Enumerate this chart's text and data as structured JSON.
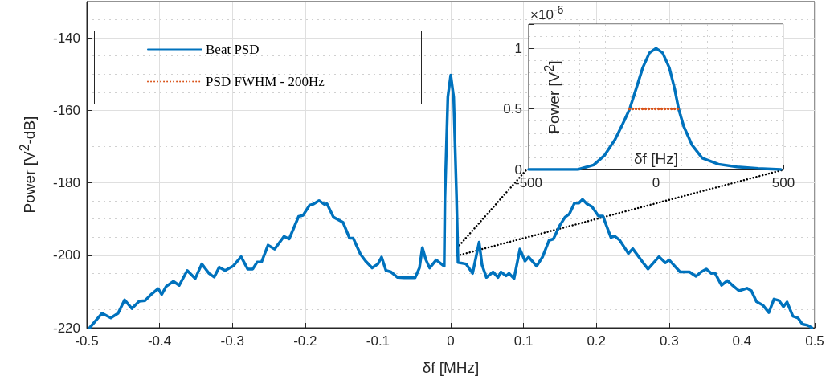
{
  "chart_data": [
    {
      "type": "line",
      "xlabel": "δf [MHz]",
      "ylabel": "Power [V$^{2}$-dB]",
      "xlim": [
        -0.5,
        0.5
      ],
      "xticks": [
        -0.5,
        -0.4,
        -0.3,
        -0.2,
        -0.1,
        0,
        0.1,
        0.2,
        0.3,
        0.4,
        0.5
      ],
      "ylim": [
        -220,
        -130
      ],
      "yticks": [
        -220,
        -200,
        -180,
        -160,
        -140
      ],
      "grid": true,
      "legend": "top left",
      "marker": "none",
      "series": [
        {
          "name": "Beat PSD",
          "color": "#0072bd",
          "line_style": "solid",
          "x": [
            -0.496,
            -0.479,
            -0.467,
            -0.457,
            -0.448,
            -0.438,
            -0.428,
            -0.42,
            -0.411,
            -0.402,
            -0.397,
            -0.391,
            -0.381,
            -0.373,
            -0.362,
            -0.351,
            -0.342,
            -0.332,
            -0.325,
            -0.318,
            -0.31,
            -0.299,
            -0.288,
            -0.279,
            -0.272,
            -0.266,
            -0.26,
            -0.251,
            -0.242,
            -0.229,
            -0.222,
            -0.209,
            -0.203,
            -0.194,
            -0.189,
            -0.181,
            -0.174,
            -0.17,
            -0.161,
            -0.148,
            -0.139,
            -0.134,
            -0.124,
            -0.117,
            -0.108,
            -0.1,
            -0.095,
            -0.089,
            -0.082,
            -0.073,
            -0.064,
            -0.049,
            -0.043,
            -0.039,
            -0.034,
            -0.029,
            -0.02,
            -0.009,
            -0.008,
            -0.004,
            0,
            0.004,
            0.008,
            0.01,
            0.021,
            0.03,
            0.039,
            0.043,
            0.049,
            0.058,
            0.065,
            0.069,
            0.076,
            0.08,
            0.087,
            0.095,
            0.102,
            0.107,
            0.118,
            0.126,
            0.135,
            0.141,
            0.15,
            0.157,
            0.163,
            0.17,
            0.176,
            0.181,
            0.187,
            0.194,
            0.203,
            0.209,
            0.22,
            0.225,
            0.232,
            0.244,
            0.25,
            0.264,
            0.271,
            0.286,
            0.295,
            0.3,
            0.315,
            0.328,
            0.337,
            0.344,
            0.351,
            0.358,
            0.363,
            0.372,
            0.38,
            0.386,
            0.396,
            0.407,
            0.413,
            0.42,
            0.429,
            0.437,
            0.444,
            0.451,
            0.457,
            0.462,
            0.47,
            0.477,
            0.483,
            0.49,
            0.496
          ],
          "values": [
            -220,
            -216,
            -217.3,
            -216,
            -212.3,
            -214.7,
            -212.7,
            -212.5,
            -210.7,
            -209.2,
            -210.8,
            -208.6,
            -207.2,
            -208.3,
            -204.2,
            -206.4,
            -202.4,
            -205,
            -206,
            -203.3,
            -204.2,
            -203,
            -200.4,
            -203.8,
            -203.8,
            -201.9,
            -201.9,
            -197.2,
            -198.3,
            -194.8,
            -195.5,
            -189.3,
            -189,
            -186.2,
            -185.9,
            -184.9,
            -185.9,
            -185.8,
            -189.5,
            -190.9,
            -195.3,
            -195.3,
            -199.7,
            -201.6,
            -203.5,
            -202.4,
            -200.5,
            -204.2,
            -204.6,
            -206.1,
            -206.2,
            -206.2,
            -203.5,
            -197.9,
            -201.3,
            -203.5,
            -201.3,
            -203,
            -184.2,
            -156.3,
            -150.3,
            -156.3,
            -184.2,
            -202,
            -202.4,
            -205,
            -196.4,
            -202.7,
            -206.1,
            -204.6,
            -206.1,
            -204.6,
            -205.7,
            -205,
            -206.4,
            -198.3,
            -201.6,
            -200.5,
            -203,
            -200.5,
            -195.9,
            -195.5,
            -191.7,
            -189.5,
            -188.6,
            -185.6,
            -185.6,
            -184.6,
            -185.8,
            -186.6,
            -189.2,
            -189.2,
            -195.1,
            -194.7,
            -195.8,
            -199.5,
            -198.2,
            -202,
            -203.8,
            -200.4,
            -202.1,
            -201.3,
            -204.6,
            -204.6,
            -205.8,
            -204.6,
            -203.8,
            -205,
            -204.9,
            -208.3,
            -207,
            -208.1,
            -209.8,
            -209.1,
            -209.8,
            -212.8,
            -213.8,
            -215.8,
            -212.1,
            -212.5,
            -214.2,
            -212.9,
            -216.8,
            -217.3,
            -219,
            -219.3,
            -220
          ]
        },
        {
          "color": "#000000",
          "line_style": "dotted",
          "x": [
            0.009,
            0.104
          ],
          "values": [
            -197.9,
            -176.4
          ]
        },
        {
          "color": "#000000",
          "line_style": "dotted",
          "x": [
            0.009,
            0.457
          ],
          "values": [
            -200.1,
            -176.4
          ]
        }
      ]
    },
    {
      "type": "line",
      "xlabel": "δf [Hz]",
      "ylabel": "Power [V$^{2}$]",
      "annotations": [
        "×10$^{-6}$"
      ],
      "xlim": [
        -500,
        500
      ],
      "xticks": [
        -500,
        0,
        500
      ],
      "ylim": [
        0,
        1.2
      ],
      "yticks": [
        0,
        0.5,
        1
      ],
      "grid": true,
      "legend": "top left",
      "marker": "none",
      "series": [
        {
          "color": "#0072bd",
          "line_style": "solid",
          "x": [
            -500,
            -307,
            -245,
            -203,
            -161,
            -130,
            -104,
            -78,
            -52,
            -26,
            0,
            26,
            52,
            73,
            89,
            109,
            141,
            182,
            245,
            318,
            401,
            490
          ],
          "values": [
            0,
            0,
            0.037,
            0.115,
            0.247,
            0.38,
            0.497,
            0.667,
            0.841,
            0.962,
            1,
            0.962,
            0.841,
            0.667,
            0.497,
            0.355,
            0.203,
            0.093,
            0.044,
            0.022,
            0.009,
            0
          ]
        },
        {
          "name": "PSD FWHM - 200Hz",
          "color": "#d95319",
          "line_style": "dotted",
          "x": [
            -104,
            89
          ],
          "values": [
            0.5,
            0.5
          ]
        }
      ]
    }
  ]
}
